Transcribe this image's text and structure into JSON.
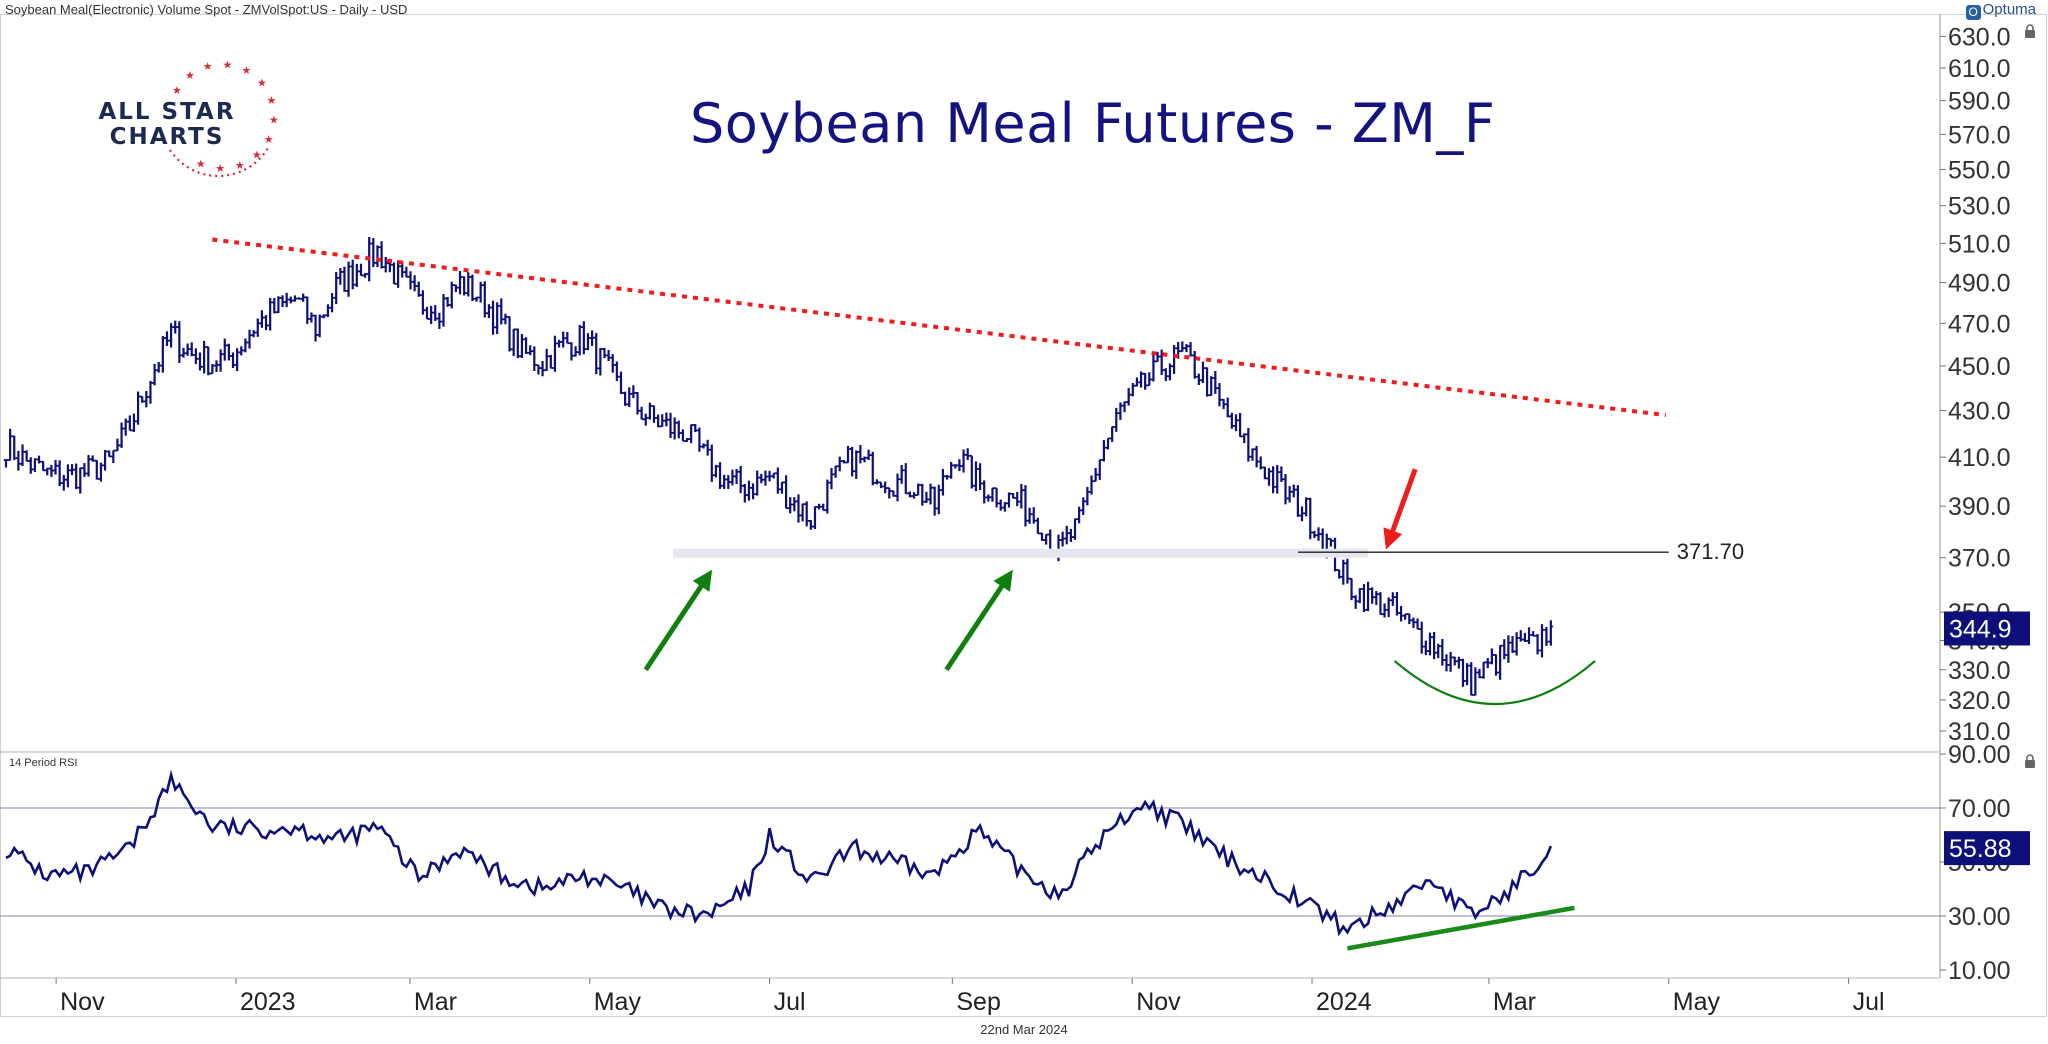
{
  "header": {
    "instrument_line": "Soybean Meal(Electronic) Volume Spot - ZMVolSpot:US - Daily - USD",
    "brand": "Optuma",
    "brand_badge": "O"
  },
  "logo": {
    "line1": "ALL STAR",
    "line2": "CHARTS"
  },
  "footer": {
    "date": "22nd Mar 2024"
  },
  "colors": {
    "price": "#0f0f7a",
    "trendline": "#ee1c1c",
    "support_band": "#e6e6ee",
    "green": "#0f7f0f",
    "red_arrow": "#ee1c1c",
    "badge_bg": "#0f0f7a"
  },
  "chart_data": [
    {
      "type": "bar",
      "subtype": "ohlc-price",
      "title": "Soybean Meal Futures - ZM_F",
      "y_axis_ticks": [
        "630.0",
        "610.0",
        "590.0",
        "570.0",
        "550.0",
        "530.0",
        "510.0",
        "490.0",
        "470.0",
        "450.0",
        "430.0",
        "410.0",
        "390.0",
        "370.0",
        "350.0",
        "340.0",
        "330.0",
        "320.0",
        "310.0"
      ],
      "y_scale": "log",
      "ylim": [
        300,
        640
      ],
      "x_tick_labels": [
        "Nov",
        "2023",
        "Mar",
        "May",
        "Jul",
        "Sep",
        "Nov",
        "2024",
        "Mar",
        "May",
        "Jul"
      ],
      "x_tick_dates": [
        "2022-11-01",
        "2023-01-01",
        "2023-03-01",
        "2023-05-01",
        "2023-07-01",
        "2023-09-01",
        "2023-11-01",
        "2024-01-01",
        "2024-03-01",
        "2024-05-01",
        "2024-07-01"
      ],
      "x_range": [
        "2022-10-15",
        "2024-08-01"
      ],
      "close_series": [
        {
          "date": "2022-10-15",
          "value": 415
        },
        {
          "date": "2022-10-22",
          "value": 408
        },
        {
          "date": "2022-10-29",
          "value": 403
        },
        {
          "date": "2022-11-05",
          "value": 402
        },
        {
          "date": "2022-11-12",
          "value": 404
        },
        {
          "date": "2022-11-19",
          "value": 408
        },
        {
          "date": "2022-11-26",
          "value": 423
        },
        {
          "date": "2022-12-03",
          "value": 445
        },
        {
          "date": "2022-12-10",
          "value": 465
        },
        {
          "date": "2022-12-17",
          "value": 455
        },
        {
          "date": "2022-12-24",
          "value": 452
        },
        {
          "date": "2022-12-31",
          "value": 455
        },
        {
          "date": "2023-01-07",
          "value": 468
        },
        {
          "date": "2023-01-14",
          "value": 476
        },
        {
          "date": "2023-01-21",
          "value": 482
        },
        {
          "date": "2023-01-28",
          "value": 468
        },
        {
          "date": "2023-02-04",
          "value": 488
        },
        {
          "date": "2023-02-11",
          "value": 497
        },
        {
          "date": "2023-02-18",
          "value": 506
        },
        {
          "date": "2023-02-25",
          "value": 492
        },
        {
          "date": "2023-03-04",
          "value": 480
        },
        {
          "date": "2023-03-11",
          "value": 478
        },
        {
          "date": "2023-03-18",
          "value": 490
        },
        {
          "date": "2023-03-25",
          "value": 483
        },
        {
          "date": "2023-04-01",
          "value": 470
        },
        {
          "date": "2023-04-08",
          "value": 456
        },
        {
          "date": "2023-04-15",
          "value": 452
        },
        {
          "date": "2023-04-22",
          "value": 460
        },
        {
          "date": "2023-04-29",
          "value": 463
        },
        {
          "date": "2023-05-06",
          "value": 450
        },
        {
          "date": "2023-05-13",
          "value": 436
        },
        {
          "date": "2023-05-20",
          "value": 428
        },
        {
          "date": "2023-05-27",
          "value": 423
        },
        {
          "date": "2023-06-03",
          "value": 420
        },
        {
          "date": "2023-06-10",
          "value": 408
        },
        {
          "date": "2023-06-17",
          "value": 399
        },
        {
          "date": "2023-06-24",
          "value": 398
        },
        {
          "date": "2023-07-01",
          "value": 402
        },
        {
          "date": "2023-07-08",
          "value": 393
        },
        {
          "date": "2023-07-15",
          "value": 385
        },
        {
          "date": "2023-07-22",
          "value": 399
        },
        {
          "date": "2023-07-29",
          "value": 410
        },
        {
          "date": "2023-08-05",
          "value": 405
        },
        {
          "date": "2023-08-12",
          "value": 400
        },
        {
          "date": "2023-08-19",
          "value": 398
        },
        {
          "date": "2023-08-26",
          "value": 390
        },
        {
          "date": "2023-09-02",
          "value": 412
        },
        {
          "date": "2023-09-09",
          "value": 400
        },
        {
          "date": "2023-09-16",
          "value": 395
        },
        {
          "date": "2023-09-23",
          "value": 392
        },
        {
          "date": "2023-09-30",
          "value": 385
        },
        {
          "date": "2023-10-07",
          "value": 372
        },
        {
          "date": "2023-10-14",
          "value": 383
        },
        {
          "date": "2023-10-21",
          "value": 410
        },
        {
          "date": "2023-10-28",
          "value": 430
        },
        {
          "date": "2023-11-04",
          "value": 440
        },
        {
          "date": "2023-11-11",
          "value": 450
        },
        {
          "date": "2023-11-18",
          "value": 455
        },
        {
          "date": "2023-11-25",
          "value": 445
        },
        {
          "date": "2023-12-02",
          "value": 430
        },
        {
          "date": "2023-12-09",
          "value": 415
        },
        {
          "date": "2023-12-16",
          "value": 405
        },
        {
          "date": "2023-12-23",
          "value": 395
        },
        {
          "date": "2023-12-30",
          "value": 388
        },
        {
          "date": "2024-01-06",
          "value": 375
        },
        {
          "date": "2024-01-13",
          "value": 360
        },
        {
          "date": "2024-01-20",
          "value": 355
        },
        {
          "date": "2024-01-27",
          "value": 352
        },
        {
          "date": "2024-02-03",
          "value": 345
        },
        {
          "date": "2024-02-10",
          "value": 340
        },
        {
          "date": "2024-02-17",
          "value": 333
        },
        {
          "date": "2024-02-24",
          "value": 326
        },
        {
          "date": "2024-03-02",
          "value": 332
        },
        {
          "date": "2024-03-09",
          "value": 337
        },
        {
          "date": "2024-03-16",
          "value": 338
        },
        {
          "date": "2024-03-22",
          "value": 344.9
        }
      ],
      "last_value_label": "344.9",
      "annotations": {
        "trendline": {
          "start": {
            "date": "2022-12-24",
            "value": 512
          },
          "end": {
            "date": "2024-04-30",
            "value": 428
          },
          "style": "dotted"
        },
        "support_band": {
          "value": 371.7,
          "label": "371.70",
          "start": "2023-06-01",
          "end": "2024-01-20",
          "line_end": "2024-05-01"
        },
        "up_arrows": [
          {
            "from": {
              "date": "2023-05-20",
              "value": 330
            },
            "to": {
              "date": "2023-06-10",
              "value": 363
            }
          },
          {
            "from": {
              "date": "2023-08-30",
              "value": 330
            },
            "to": {
              "date": "2023-09-20",
              "value": 363
            }
          }
        ],
        "down_arrow": {
          "from": {
            "date": "2024-02-05",
            "value": 405
          },
          "to": {
            "date": "2024-01-27",
            "value": 376
          }
        },
        "rounding_bottom": {
          "start": "2024-01-29",
          "end": "2024-04-06",
          "top_value": 333,
          "bottom_value": 321
        }
      }
    },
    {
      "type": "line",
      "title": "14 Period RSI",
      "y_axis_ticks": [
        "90.00",
        "70.00",
        "50.00",
        "30.00",
        "10.00"
      ],
      "ylim": [
        7,
        90
      ],
      "reference_lines": [
        70,
        30
      ],
      "x_range": [
        "2022-10-15",
        "2024-08-01"
      ],
      "series": [
        {
          "values": [
            {
              "date": "2022-10-15",
              "value": 55
            },
            {
              "date": "2022-10-29",
              "value": 45
            },
            {
              "date": "2022-11-12",
              "value": 46
            },
            {
              "date": "2022-11-26",
              "value": 55
            },
            {
              "date": "2022-12-10",
              "value": 80
            },
            {
              "date": "2022-12-24",
              "value": 63
            },
            {
              "date": "2023-01-07",
              "value": 62
            },
            {
              "date": "2023-01-21",
              "value": 63
            },
            {
              "date": "2023-02-04",
              "value": 58
            },
            {
              "date": "2023-02-18",
              "value": 63
            },
            {
              "date": "2023-03-04",
              "value": 44
            },
            {
              "date": "2023-03-18",
              "value": 55
            },
            {
              "date": "2023-04-01",
              "value": 45
            },
            {
              "date": "2023-04-15",
              "value": 40
            },
            {
              "date": "2023-04-29",
              "value": 45
            },
            {
              "date": "2023-05-13",
              "value": 40
            },
            {
              "date": "2023-05-27",
              "value": 32
            },
            {
              "date": "2023-06-10",
              "value": 30
            },
            {
              "date": "2023-06-24",
              "value": 40
            },
            {
              "date": "2023-07-01",
              "value": 60
            },
            {
              "date": "2023-07-15",
              "value": 42
            },
            {
              "date": "2023-07-29",
              "value": 55
            },
            {
              "date": "2023-08-12",
              "value": 50
            },
            {
              "date": "2023-08-26",
              "value": 45
            },
            {
              "date": "2023-09-09",
              "value": 62
            },
            {
              "date": "2023-09-23",
              "value": 48
            },
            {
              "date": "2023-10-07",
              "value": 38
            },
            {
              "date": "2023-10-21",
              "value": 58
            },
            {
              "date": "2023-11-04",
              "value": 72
            },
            {
              "date": "2023-11-18",
              "value": 64
            },
            {
              "date": "2023-12-02",
              "value": 52
            },
            {
              "date": "2023-12-16",
              "value": 44
            },
            {
              "date": "2023-12-30",
              "value": 35
            },
            {
              "date": "2024-01-13",
              "value": 25
            },
            {
              "date": "2024-01-27",
              "value": 33
            },
            {
              "date": "2024-02-10",
              "value": 44
            },
            {
              "date": "2024-02-24",
              "value": 30
            },
            {
              "date": "2024-03-09",
              "value": 40
            },
            {
              "date": "2024-03-22",
              "value": 55.88
            }
          ]
        }
      ],
      "last_value_label": "55.88",
      "annotations": {
        "divergence_line": {
          "start": {
            "date": "2024-01-13",
            "value": 18
          },
          "end": {
            "date": "2024-03-30",
            "value": 33
          }
        }
      }
    }
  ]
}
